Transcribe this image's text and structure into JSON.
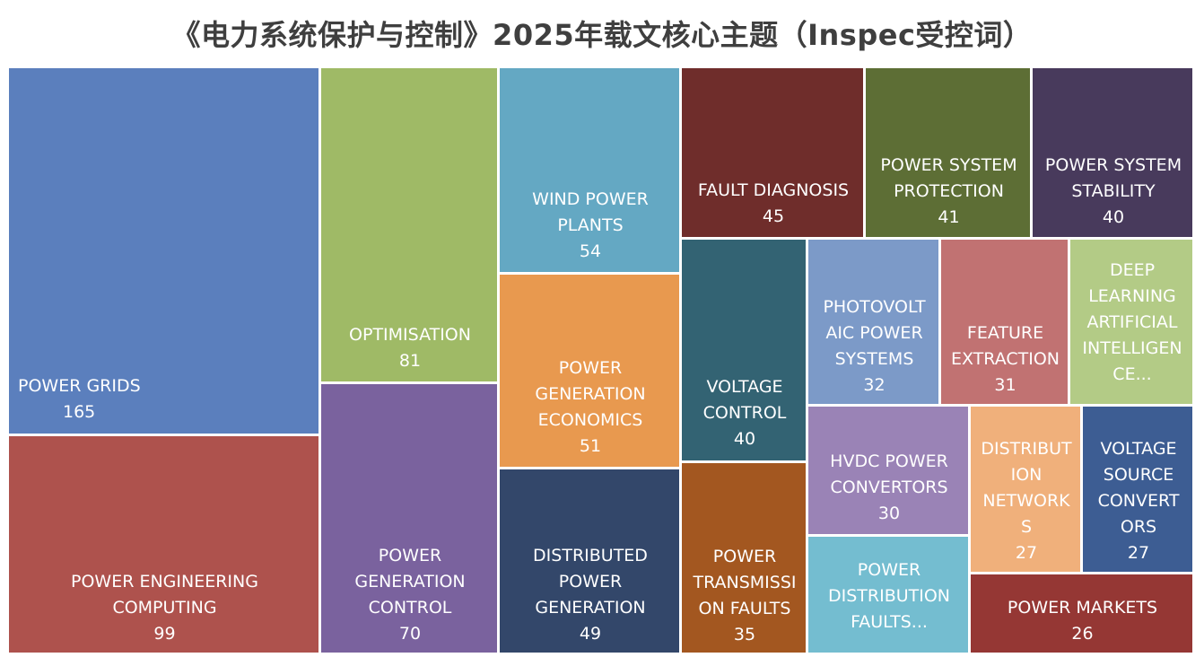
{
  "chart_data": {
    "type": "treemap",
    "title": "《电力系统保护与控制》2025年载文核心主题（Inspec受控词）",
    "items": [
      {
        "label": "POWER GRIDS",
        "value": 165,
        "color": "#5b7fbd"
      },
      {
        "label": "POWER ENGINEERING COMPUTING",
        "value": 99,
        "color": "#ae524d"
      },
      {
        "label": "OPTIMISATION",
        "value": 81,
        "color": "#9fba66"
      },
      {
        "label": "POWER GENERATION CONTROL",
        "value": 70,
        "color": "#7a629e"
      },
      {
        "label": "WIND POWER PLANTS",
        "value": 54,
        "color": "#64a8c3"
      },
      {
        "label": "POWER GENERATION ECONOMICS",
        "value": 51,
        "color": "#e8994f"
      },
      {
        "label": "DISTRIBUTED POWER GENERATION",
        "value": 49,
        "color": "#33476a"
      },
      {
        "label": "FAULT DIAGNOSIS",
        "value": 45,
        "color": "#6f2d2b"
      },
      {
        "label": "POWER SYSTEM PROTECTION",
        "value": 41,
        "color": "#5d6e35"
      },
      {
        "label": "POWER SYSTEM STABILITY",
        "value": 40,
        "color": "#483a5c"
      },
      {
        "label": "VOLTAGE CONTROL",
        "value": 40,
        "color": "#336373"
      },
      {
        "label": "POWER TRANSMISSION FAULTS",
        "value": 35,
        "color": "#a35720"
      },
      {
        "label": "PHOTOVOLTAIC POWER SYSTEMS",
        "value": 32,
        "color": "#7c9ac8"
      },
      {
        "label": "FEATURE EXTRACTION",
        "value": 31,
        "color": "#c17272"
      },
      {
        "label": "DEEP LEARNING ARTIFICIAL INTELLIGENCE...",
        "value": null,
        "color": "#b3cb86"
      },
      {
        "label": "HVDC POWER CONVERTORS",
        "value": 30,
        "color": "#9a83b6"
      },
      {
        "label": "POWER DISTRIBUTION FAULTS...",
        "value": null,
        "color": "#74bdd0"
      },
      {
        "label": "DISTRIBUTION NETWORKS",
        "value": 27,
        "color": "#f0b07b"
      },
      {
        "label": "VOLTAGE SOURCE CONVERTORS",
        "value": 27,
        "color": "#3d5d93"
      },
      {
        "label": "POWER MARKETS",
        "value": 26,
        "color": "#953734"
      }
    ]
  }
}
